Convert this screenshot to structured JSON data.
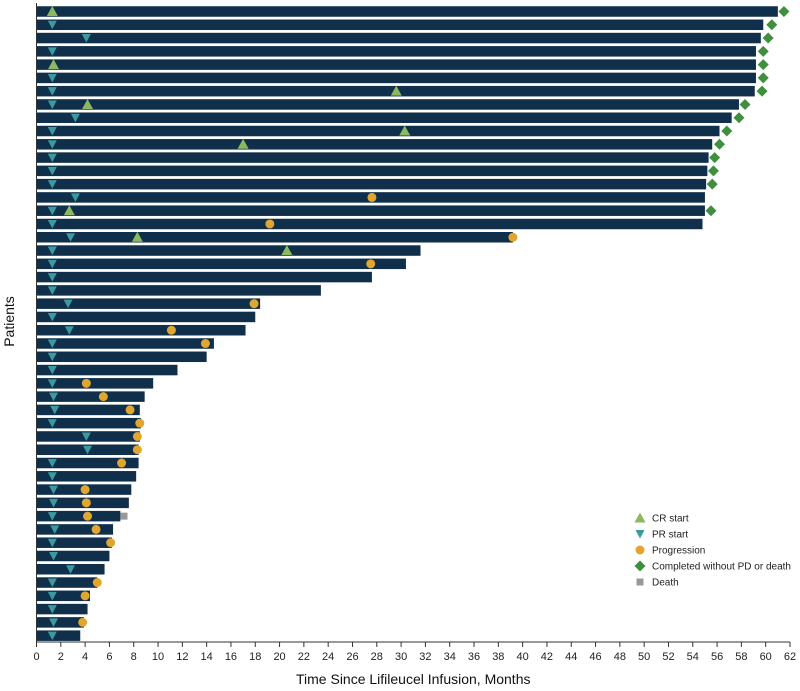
{
  "chart_data": {
    "type": "swimmer",
    "xlabel": "Time Since Lifileucel Infusion, Months",
    "ylabel": "Patients",
    "xlim": [
      0,
      62
    ],
    "xticks": [
      0,
      2,
      4,
      6,
      8,
      10,
      12,
      14,
      16,
      18,
      20,
      22,
      24,
      26,
      28,
      30,
      32,
      34,
      36,
      38,
      40,
      42,
      44,
      46,
      48,
      50,
      52,
      54,
      56,
      58,
      60,
      62
    ],
    "colors": {
      "bar": "#0f2f4a",
      "cr": "#8cb860",
      "pr": "#3a9aa0",
      "progression": "#e0a630",
      "completed": "#3f8f3f",
      "death": "#999999"
    },
    "legend": {
      "position": "bottom-right",
      "entries": [
        {
          "key": "cr",
          "label": "CR start"
        },
        {
          "key": "pr",
          "label": "PR start"
        },
        {
          "key": "progression",
          "label": "Progression"
        },
        {
          "key": "completed",
          "label": "Completed without PD or death"
        },
        {
          "key": "death",
          "label": "Death"
        }
      ]
    },
    "patients": [
      {
        "duration": 61.0,
        "markers": [
          {
            "type": "cr",
            "t": 1.3
          },
          {
            "type": "completed",
            "t": 61.5
          }
        ]
      },
      {
        "duration": 59.8,
        "markers": [
          {
            "type": "pr",
            "t": 1.3
          },
          {
            "type": "completed",
            "t": 60.5
          }
        ]
      },
      {
        "duration": 59.6,
        "markers": [
          {
            "type": "pr",
            "t": 4.1
          },
          {
            "type": "completed",
            "t": 60.2
          }
        ]
      },
      {
        "duration": 59.2,
        "markers": [
          {
            "type": "pr",
            "t": 1.3
          },
          {
            "type": "completed",
            "t": 59.8
          }
        ]
      },
      {
        "duration": 59.2,
        "markers": [
          {
            "type": "cr",
            "t": 1.4
          },
          {
            "type": "completed",
            "t": 59.8
          }
        ]
      },
      {
        "duration": 59.2,
        "markers": [
          {
            "type": "pr",
            "t": 1.3
          },
          {
            "type": "completed",
            "t": 59.8
          }
        ]
      },
      {
        "duration": 59.1,
        "markers": [
          {
            "type": "pr",
            "t": 1.3
          },
          {
            "type": "cr",
            "t": 29.6
          },
          {
            "type": "completed",
            "t": 59.7
          }
        ]
      },
      {
        "duration": 57.8,
        "markers": [
          {
            "type": "pr",
            "t": 1.3
          },
          {
            "type": "cr",
            "t": 4.2
          },
          {
            "type": "completed",
            "t": 58.3
          }
        ]
      },
      {
        "duration": 57.2,
        "markers": [
          {
            "type": "pr",
            "t": 3.2
          },
          {
            "type": "completed",
            "t": 57.8
          }
        ]
      },
      {
        "duration": 56.2,
        "markers": [
          {
            "type": "pr",
            "t": 1.3
          },
          {
            "type": "cr",
            "t": 30.3
          },
          {
            "type": "completed",
            "t": 56.8
          }
        ]
      },
      {
        "duration": 55.6,
        "markers": [
          {
            "type": "pr",
            "t": 1.3
          },
          {
            "type": "cr",
            "t": 17.0
          },
          {
            "type": "completed",
            "t": 56.2
          }
        ]
      },
      {
        "duration": 55.3,
        "markers": [
          {
            "type": "pr",
            "t": 1.3
          },
          {
            "type": "completed",
            "t": 55.8
          }
        ]
      },
      {
        "duration": 55.2,
        "markers": [
          {
            "type": "pr",
            "t": 1.3
          },
          {
            "type": "completed",
            "t": 55.7
          }
        ]
      },
      {
        "duration": 55.1,
        "markers": [
          {
            "type": "pr",
            "t": 1.3
          },
          {
            "type": "completed",
            "t": 55.6
          }
        ]
      },
      {
        "duration": 55.0,
        "markers": [
          {
            "type": "pr",
            "t": 3.2
          },
          {
            "type": "progression",
            "t": 27.6
          }
        ]
      },
      {
        "duration": 55.0,
        "markers": [
          {
            "type": "pr",
            "t": 1.3
          },
          {
            "type": "cr",
            "t": 2.7
          },
          {
            "type": "completed",
            "t": 55.5
          }
        ]
      },
      {
        "duration": 54.8,
        "markers": [
          {
            "type": "pr",
            "t": 1.3
          },
          {
            "type": "progression",
            "t": 19.2
          }
        ]
      },
      {
        "duration": 39.2,
        "markers": [
          {
            "type": "pr",
            "t": 2.8
          },
          {
            "type": "cr",
            "t": 8.3
          },
          {
            "type": "progression",
            "t": 39.2
          }
        ]
      },
      {
        "duration": 31.6,
        "markers": [
          {
            "type": "pr",
            "t": 1.3
          },
          {
            "type": "cr",
            "t": 20.6
          }
        ]
      },
      {
        "duration": 30.4,
        "markers": [
          {
            "type": "pr",
            "t": 1.3
          },
          {
            "type": "progression",
            "t": 27.5
          }
        ]
      },
      {
        "duration": 27.6,
        "markers": [
          {
            "type": "pr",
            "t": 1.3
          }
        ]
      },
      {
        "duration": 23.4,
        "markers": [
          {
            "type": "pr",
            "t": 1.3
          }
        ]
      },
      {
        "duration": 18.4,
        "markers": [
          {
            "type": "pr",
            "t": 2.6
          },
          {
            "type": "progression",
            "t": 17.9
          }
        ]
      },
      {
        "duration": 18.0,
        "markers": [
          {
            "type": "pr",
            "t": 1.3
          }
        ]
      },
      {
        "duration": 17.2,
        "markers": [
          {
            "type": "pr",
            "t": 2.7
          },
          {
            "type": "progression",
            "t": 11.1
          }
        ]
      },
      {
        "duration": 14.6,
        "markers": [
          {
            "type": "pr",
            "t": 1.3
          },
          {
            "type": "progression",
            "t": 13.9
          }
        ]
      },
      {
        "duration": 14.0,
        "markers": [
          {
            "type": "pr",
            "t": 1.3
          }
        ]
      },
      {
        "duration": 11.6,
        "markers": [
          {
            "type": "pr",
            "t": 1.3
          }
        ]
      },
      {
        "duration": 9.6,
        "markers": [
          {
            "type": "pr",
            "t": 1.3
          },
          {
            "type": "progression",
            "t": 4.1
          }
        ]
      },
      {
        "duration": 8.9,
        "markers": [
          {
            "type": "pr",
            "t": 1.4
          },
          {
            "type": "progression",
            "t": 5.5
          }
        ]
      },
      {
        "duration": 8.5,
        "markers": [
          {
            "type": "pr",
            "t": 1.5
          },
          {
            "type": "progression",
            "t": 7.7
          }
        ]
      },
      {
        "duration": 8.6,
        "markers": [
          {
            "type": "pr",
            "t": 1.3
          },
          {
            "type": "progression",
            "t": 8.5
          }
        ]
      },
      {
        "duration": 8.5,
        "markers": [
          {
            "type": "pr",
            "t": 4.1
          },
          {
            "type": "progression",
            "t": 8.3
          }
        ]
      },
      {
        "duration": 8.4,
        "markers": [
          {
            "type": "pr",
            "t": 4.2
          },
          {
            "type": "progression",
            "t": 8.3
          }
        ]
      },
      {
        "duration": 8.4,
        "markers": [
          {
            "type": "pr",
            "t": 1.3
          },
          {
            "type": "progression",
            "t": 7.0
          }
        ]
      },
      {
        "duration": 8.2,
        "markers": [
          {
            "type": "pr",
            "t": 1.3
          }
        ]
      },
      {
        "duration": 7.8,
        "markers": [
          {
            "type": "pr",
            "t": 1.4
          },
          {
            "type": "progression",
            "t": 4.0
          }
        ]
      },
      {
        "duration": 7.6,
        "markers": [
          {
            "type": "pr",
            "t": 1.4
          },
          {
            "type": "progression",
            "t": 4.1
          }
        ]
      },
      {
        "duration": 6.9,
        "markers": [
          {
            "type": "pr",
            "t": 1.3
          },
          {
            "type": "progression",
            "t": 4.2
          },
          {
            "type": "death",
            "t": 7.2
          }
        ]
      },
      {
        "duration": 6.3,
        "markers": [
          {
            "type": "pr",
            "t": 1.5
          },
          {
            "type": "progression",
            "t": 4.9
          }
        ]
      },
      {
        "duration": 6.2,
        "markers": [
          {
            "type": "pr",
            "t": 1.3
          },
          {
            "type": "progression",
            "t": 6.1
          }
        ]
      },
      {
        "duration": 6.0,
        "markers": [
          {
            "type": "pr",
            "t": 1.4
          }
        ]
      },
      {
        "duration": 5.6,
        "markers": [
          {
            "type": "pr",
            "t": 2.8
          }
        ]
      },
      {
        "duration": 5.0,
        "markers": [
          {
            "type": "pr",
            "t": 1.3
          },
          {
            "type": "progression",
            "t": 5.0
          }
        ]
      },
      {
        "duration": 4.4,
        "markers": [
          {
            "type": "pr",
            "t": 1.3
          },
          {
            "type": "progression",
            "t": 4.0
          }
        ]
      },
      {
        "duration": 4.2,
        "markers": [
          {
            "type": "pr",
            "t": 1.3
          }
        ]
      },
      {
        "duration": 3.9,
        "markers": [
          {
            "type": "pr",
            "t": 1.4
          },
          {
            "type": "progression",
            "t": 3.8
          }
        ]
      },
      {
        "duration": 3.6,
        "markers": [
          {
            "type": "pr",
            "t": 1.3
          }
        ]
      }
    ]
  }
}
